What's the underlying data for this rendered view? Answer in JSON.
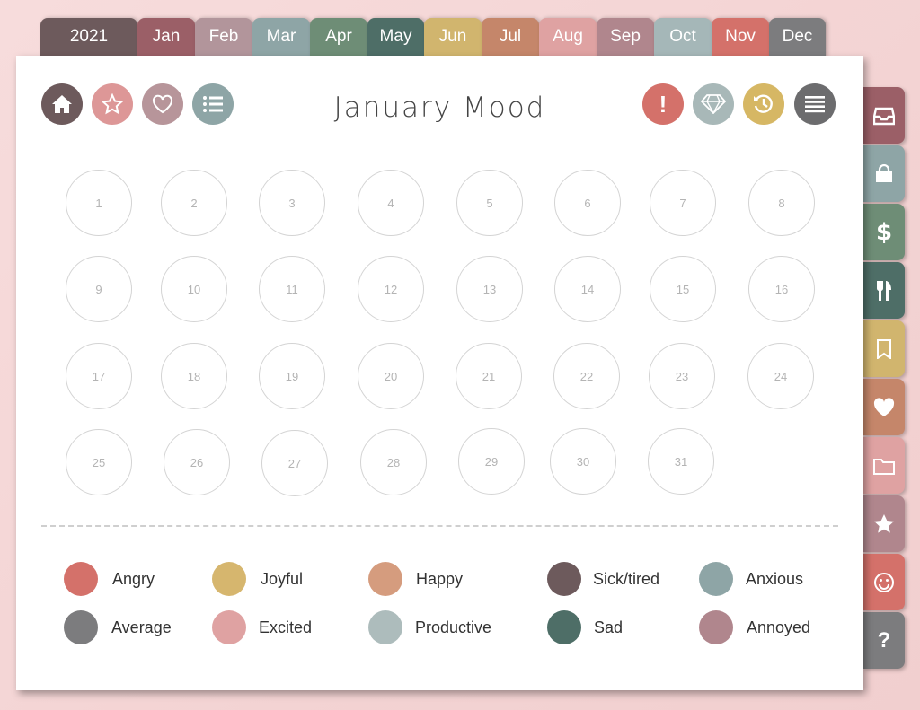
{
  "year_tab": "2021",
  "months": [
    "Jan",
    "Feb",
    "Mar",
    "Apr",
    "May",
    "Jun",
    "Jul",
    "Aug",
    "Sep",
    "Oct",
    "Nov",
    "Dec"
  ],
  "month_colors": {
    "year": "#6d5a5c",
    "Jan": "#9b5f67",
    "Feb": "#b2959b",
    "Mar": "#8ea5a6",
    "Apr": "#6e8d76",
    "May": "#4e6e67",
    "Jun": "#d1b56e",
    "Jul": "#c5866a",
    "Aug": "#dfa2a2",
    "Sep": "#b0868d",
    "Oct": "#a5b7b8",
    "Nov": "#d4716a",
    "Dec": "#7c7c7e"
  },
  "title": "January Mood",
  "toolbar_left": [
    {
      "icon": "home-icon",
      "color": "#6d5a5c"
    },
    {
      "icon": "star-icon",
      "color": "#dd9797"
    },
    {
      "icon": "heart-icon",
      "color": "#b7959a"
    },
    {
      "icon": "list-icon",
      "color": "#8ea5a6"
    }
  ],
  "toolbar_right": [
    {
      "icon": "alert-icon",
      "color": "#d4716a"
    },
    {
      "icon": "diamond-icon",
      "color": "#a8b8b8"
    },
    {
      "icon": "history-icon",
      "color": "#d6b764"
    },
    {
      "icon": "menu-icon",
      "color": "#6c6c6e"
    }
  ],
  "days": [
    "1",
    "2",
    "3",
    "4",
    "5",
    "6",
    "7",
    "8",
    "9",
    "10",
    "11",
    "12",
    "13",
    "14",
    "15",
    "16",
    "17",
    "18",
    "19",
    "20",
    "21",
    "22",
    "23",
    "24",
    "25",
    "26",
    "27",
    "28",
    "29",
    "30",
    "31"
  ],
  "legend": [
    {
      "label": "Angry",
      "color": "#d4716a"
    },
    {
      "label": "Joyful",
      "color": "#d6b66e"
    },
    {
      "label": "Happy",
      "color": "#d59c7e"
    },
    {
      "label": "Sick/tired",
      "color": "#6d5a5c"
    },
    {
      "label": "Anxious",
      "color": "#8ea5a6"
    },
    {
      "label": "Average",
      "color": "#7c7c7e"
    },
    {
      "label": "Excited",
      "color": "#dfa2a2"
    },
    {
      "label": "Productive",
      "color": "#adbcbc"
    },
    {
      "label": "Sad",
      "color": "#4e6e67"
    },
    {
      "label": "Annoyed",
      "color": "#b0868d"
    }
  ],
  "side_tabs": [
    {
      "icon": "inbox-icon",
      "color": "#9b5f67"
    },
    {
      "icon": "shopping-bag-icon",
      "color": "#8ea5a6"
    },
    {
      "icon": "dollar-icon",
      "color": "#6e8d76"
    },
    {
      "icon": "utensils-icon",
      "color": "#4e6e67"
    },
    {
      "icon": "bookmark-icon",
      "color": "#d1b56e"
    },
    {
      "icon": "heart-icon",
      "color": "#c5866a"
    },
    {
      "icon": "folder-icon",
      "color": "#dfa2a2"
    },
    {
      "icon": "star-icon",
      "color": "#b0868d"
    },
    {
      "icon": "smile-icon",
      "color": "#d4716a"
    },
    {
      "icon": "help-icon",
      "color": "#7c7c7e",
      "text": "?"
    }
  ]
}
